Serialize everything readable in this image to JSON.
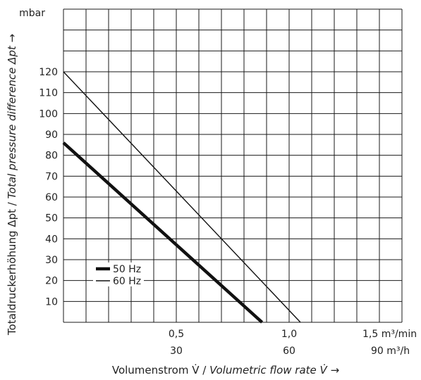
{
  "chart_data": {
    "type": "line",
    "y_unit": "mbar",
    "y_ticks": [
      10,
      20,
      30,
      40,
      50,
      60,
      70,
      80,
      90,
      100,
      110,
      120
    ],
    "ylim": [
      0,
      150
    ],
    "xlim": [
      0,
      1.5
    ],
    "x_ticks_primary": [
      {
        "value": 0.5,
        "label": "0,5"
      },
      {
        "value": 1.0,
        "label": "1,0"
      },
      {
        "value": 1.5,
        "label": "1,5 m³/min"
      }
    ],
    "x_ticks_secondary": [
      {
        "value": 0.5,
        "label": "30"
      },
      {
        "value": 1.0,
        "label": "60"
      },
      {
        "value": 1.5,
        "label": "90 m³/h"
      }
    ],
    "xlabel": {
      "normal": "Volumenstrom V̇ / ",
      "italic": "Volumetric flow rate V̇",
      "arrow": " →"
    },
    "ylabel": {
      "normal": "Totaldruckerhöhung Δpt / ",
      "italic": "Total pressure difference Δpt",
      "arrow": " →"
    },
    "series": [
      {
        "name": "50 Hz",
        "x": [
          0,
          0.88
        ],
        "y": [
          86,
          0
        ],
        "weight": "thick"
      },
      {
        "name": "60 Hz",
        "x": [
          0,
          1.05
        ],
        "y": [
          120,
          0
        ],
        "weight": "thin"
      }
    ],
    "legend_position": "lower-left",
    "grid": true,
    "grid_columns": 15,
    "grid_rows": 15
  }
}
